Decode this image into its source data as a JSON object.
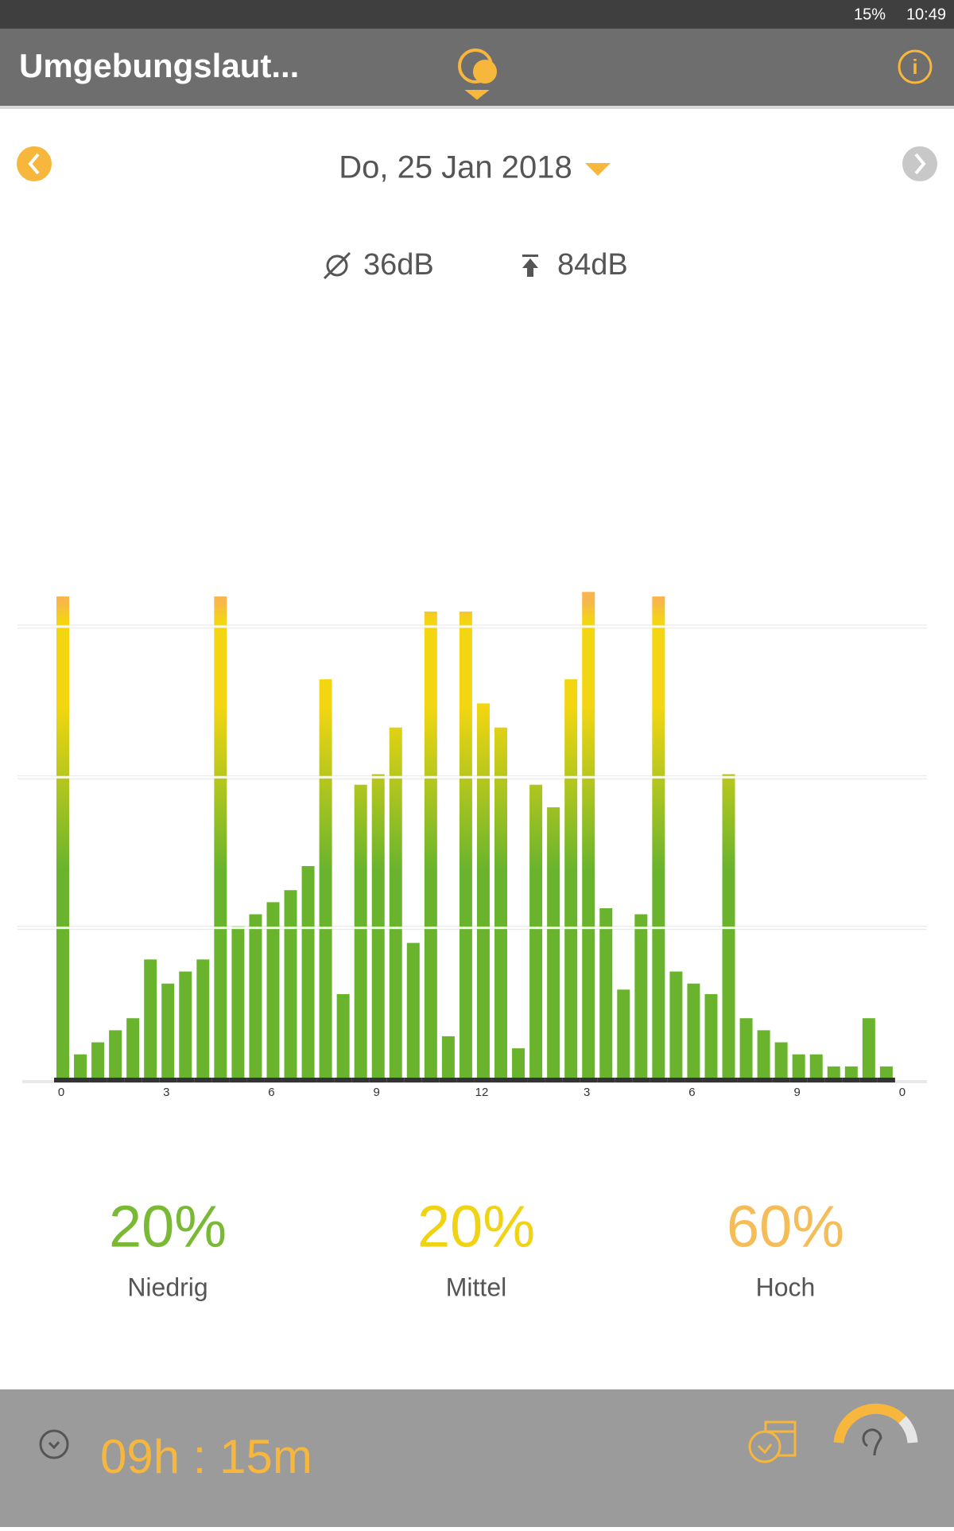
{
  "status": {
    "battery": "15%",
    "time": "10:49"
  },
  "header": {
    "title": "Umgebungslaut..."
  },
  "date": "Do, 25 Jan 2018",
  "stats": {
    "average": "36dB",
    "maximum": "84dB"
  },
  "chart_data": {
    "type": "bar",
    "values": [
      3.2,
      0.16,
      0.24,
      0.32,
      0.4,
      0.79,
      0.63,
      0.71,
      0.79,
      3.2,
      1.01,
      1.09,
      1.17,
      1.25,
      1.41,
      2.65,
      0.56,
      1.95,
      2.02,
      2.33,
      0.9,
      3.1,
      0.28,
      3.1,
      2.49,
      2.33,
      0.2,
      1.95,
      1.8,
      2.65,
      3.23,
      1.13,
      0.59,
      1.09,
      3.2,
      0.71,
      0.63,
      0.56,
      2.02,
      0.4,
      0.32,
      0.24,
      0.16,
      0.16,
      0.08,
      0.08,
      0.4,
      0.08
    ],
    "gradient": [
      "#6ab42d",
      "#f3d611",
      "#f8b64c"
    ],
    "ylim": [
      0,
      3.3
    ],
    "yticks": [
      1,
      2,
      3
    ],
    "grid": true,
    "xlim": [
      0,
      48
    ],
    "xticks": [
      {
        "value": 0,
        "label": "0"
      },
      {
        "value": 6,
        "label": "3"
      },
      {
        "value": 12,
        "label": "6"
      },
      {
        "value": 18,
        "label": "9"
      },
      {
        "value": 24,
        "label": "12"
      },
      {
        "value": 30,
        "label": "3"
      },
      {
        "value": 36,
        "label": "6"
      },
      {
        "value": 42,
        "label": "9"
      },
      {
        "value": 48,
        "label": "0"
      }
    ]
  },
  "summary": [
    {
      "percent": "20%",
      "label": "Niedrig",
      "color": "#79b933"
    },
    {
      "percent": "20%",
      "label": "Mittel",
      "color": "#f0d314"
    },
    {
      "percent": "60%",
      "label": "Hoch",
      "color": "#f5bd5a"
    }
  ],
  "footer": {
    "duration": "09h : 15m"
  }
}
